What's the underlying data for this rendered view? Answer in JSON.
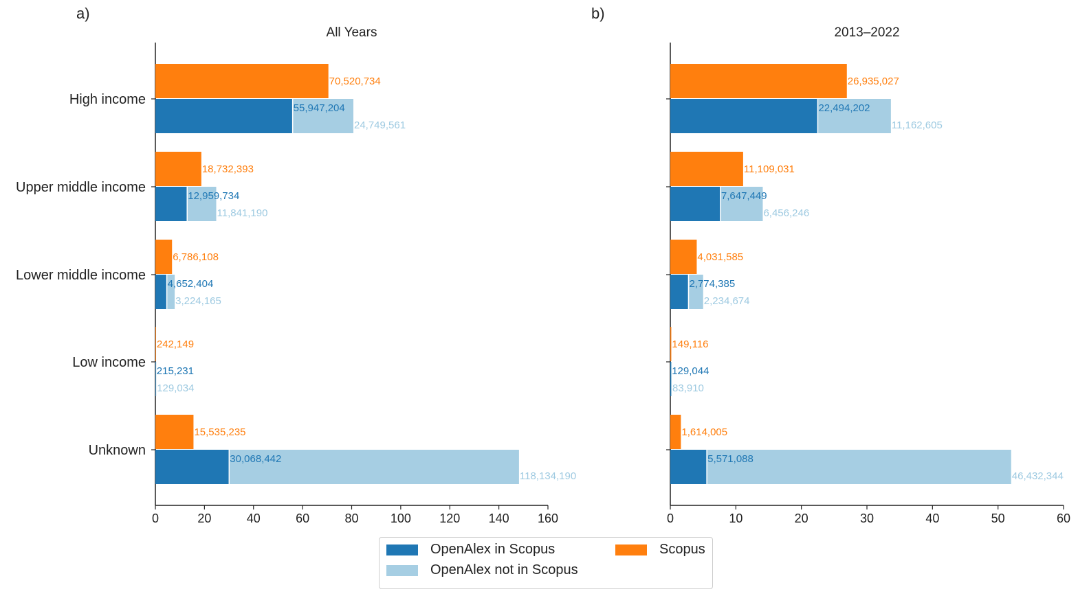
{
  "chart_data": [
    {
      "type": "bar",
      "panel": "a)",
      "title": "All Years",
      "categories": [
        "High income",
        "Upper middle income",
        "Lower middle income",
        "Low income",
        "Unknown"
      ],
      "xlim": [
        0,
        160
      ],
      "xticks": [
        "0",
        "20",
        "40",
        "60",
        "80",
        "100",
        "120",
        "140",
        "160"
      ],
      "series": [
        {
          "name": "Scopus",
          "values": [
            70520734,
            18732393,
            6786108,
            242149,
            15535235
          ],
          "labels": [
            "70,520,734",
            "18,732,393",
            "6,786,108",
            "242,149",
            "15,535,235"
          ]
        },
        {
          "name": "OpenAlex in Scopus",
          "values": [
            55947204,
            12959734,
            4652404,
            215231,
            30068442
          ],
          "labels": [
            "55,947,204",
            "12,959,734",
            "4,652,404",
            "215,231",
            "30,068,442"
          ]
        },
        {
          "name": "OpenAlex not in Scopus",
          "values": [
            24749561,
            11841190,
            3224165,
            129034,
            118134190
          ],
          "labels": [
            "24,749,561",
            "11,841,190",
            "3,224,165",
            "129,034",
            "118,134,190"
          ]
        }
      ]
    },
    {
      "type": "bar",
      "panel": "b)",
      "title": "2013–2022",
      "categories": [
        "High income",
        "Upper middle income",
        "Lower middle income",
        "Low income",
        "Unknown"
      ],
      "xlim": [
        0,
        60
      ],
      "xticks": [
        "0",
        "10",
        "20",
        "30",
        "40",
        "50",
        "60"
      ],
      "series": [
        {
          "name": "Scopus",
          "values": [
            26935027,
            11109031,
            4031585,
            149116,
            1614005
          ],
          "labels": [
            "26,935,027",
            "11,109,031",
            "4,031,585",
            "149,116",
            "1,614,005"
          ]
        },
        {
          "name": "OpenAlex in Scopus",
          "values": [
            22494202,
            7647449,
            2774385,
            129044,
            5571088
          ],
          "labels": [
            "22,494,202",
            "7,647,449",
            "2,774,385",
            "129,044",
            "5,571,088"
          ]
        },
        {
          "name": "OpenAlex not in Scopus",
          "values": [
            11162605,
            6456246,
            2234674,
            83910,
            46432344
          ],
          "labels": [
            "11,162,605",
            "6,456,246",
            "2,234,674",
            "83,910",
            "46,432,344"
          ]
        }
      ]
    }
  ],
  "legend": {
    "placement": "bottom-center",
    "items": [
      {
        "label": "OpenAlex in Scopus",
        "color": "#1f77b4"
      },
      {
        "label": "OpenAlex not in Scopus",
        "color": "#a6cee3"
      },
      {
        "label": "Scopus",
        "color": "#ff7f0e"
      }
    ]
  },
  "colors": {
    "scopus": "#ff7f0e",
    "openalex_in": "#1f77b4",
    "openalex_not_in": "#a6cee3",
    "openalex_not_in_label": "#9ecae1"
  }
}
